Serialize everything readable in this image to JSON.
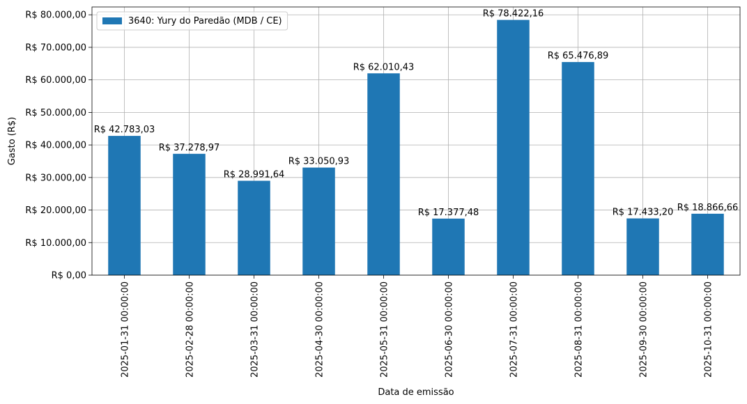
{
  "chart_data": {
    "type": "bar",
    "categories": [
      "2025-01-31 00:00:00",
      "2025-02-28 00:00:00",
      "2025-03-31 00:00:00",
      "2025-04-30 00:00:00",
      "2025-05-31 00:00:00",
      "2025-06-30 00:00:00",
      "2025-07-31 00:00:00",
      "2025-08-31 00:00:00",
      "2025-09-30 00:00:00",
      "2025-10-31 00:00:00"
    ],
    "series": [
      {
        "name": "3640: Yury do Paredão (MDB / CE)",
        "color": "#1f77b4",
        "values": [
          42783.03,
          37278.97,
          28991.64,
          33050.93,
          62010.43,
          17377.48,
          78422.16,
          65476.89,
          17433.2,
          18866.66
        ],
        "labels": [
          "R$ 42.783,03",
          "R$ 37.278,97",
          "R$ 28.991,64",
          "R$ 33.050,93",
          "R$ 62.010,43",
          "R$ 17.377,48",
          "R$ 78.422,16",
          "R$ 65.476,89",
          "R$ 17.433,20",
          "R$ 18.866,66"
        ]
      }
    ],
    "xlabel": "Data de emissão",
    "ylabel": "Gasto (R$)",
    "ylim": [
      0,
      82400
    ],
    "yticks": [
      0,
      10000,
      20000,
      30000,
      40000,
      50000,
      60000,
      70000,
      80000
    ],
    "ytick_labels": [
      "R$ 0,00",
      "R$ 10.000,00",
      "R$ 20.000,00",
      "R$ 30.000,00",
      "R$ 40.000,00",
      "R$ 50.000,00",
      "R$ 60.000,00",
      "R$ 70.000,00",
      "R$ 80.000,00"
    ],
    "grid": true,
    "legend_position": "top-left"
  }
}
